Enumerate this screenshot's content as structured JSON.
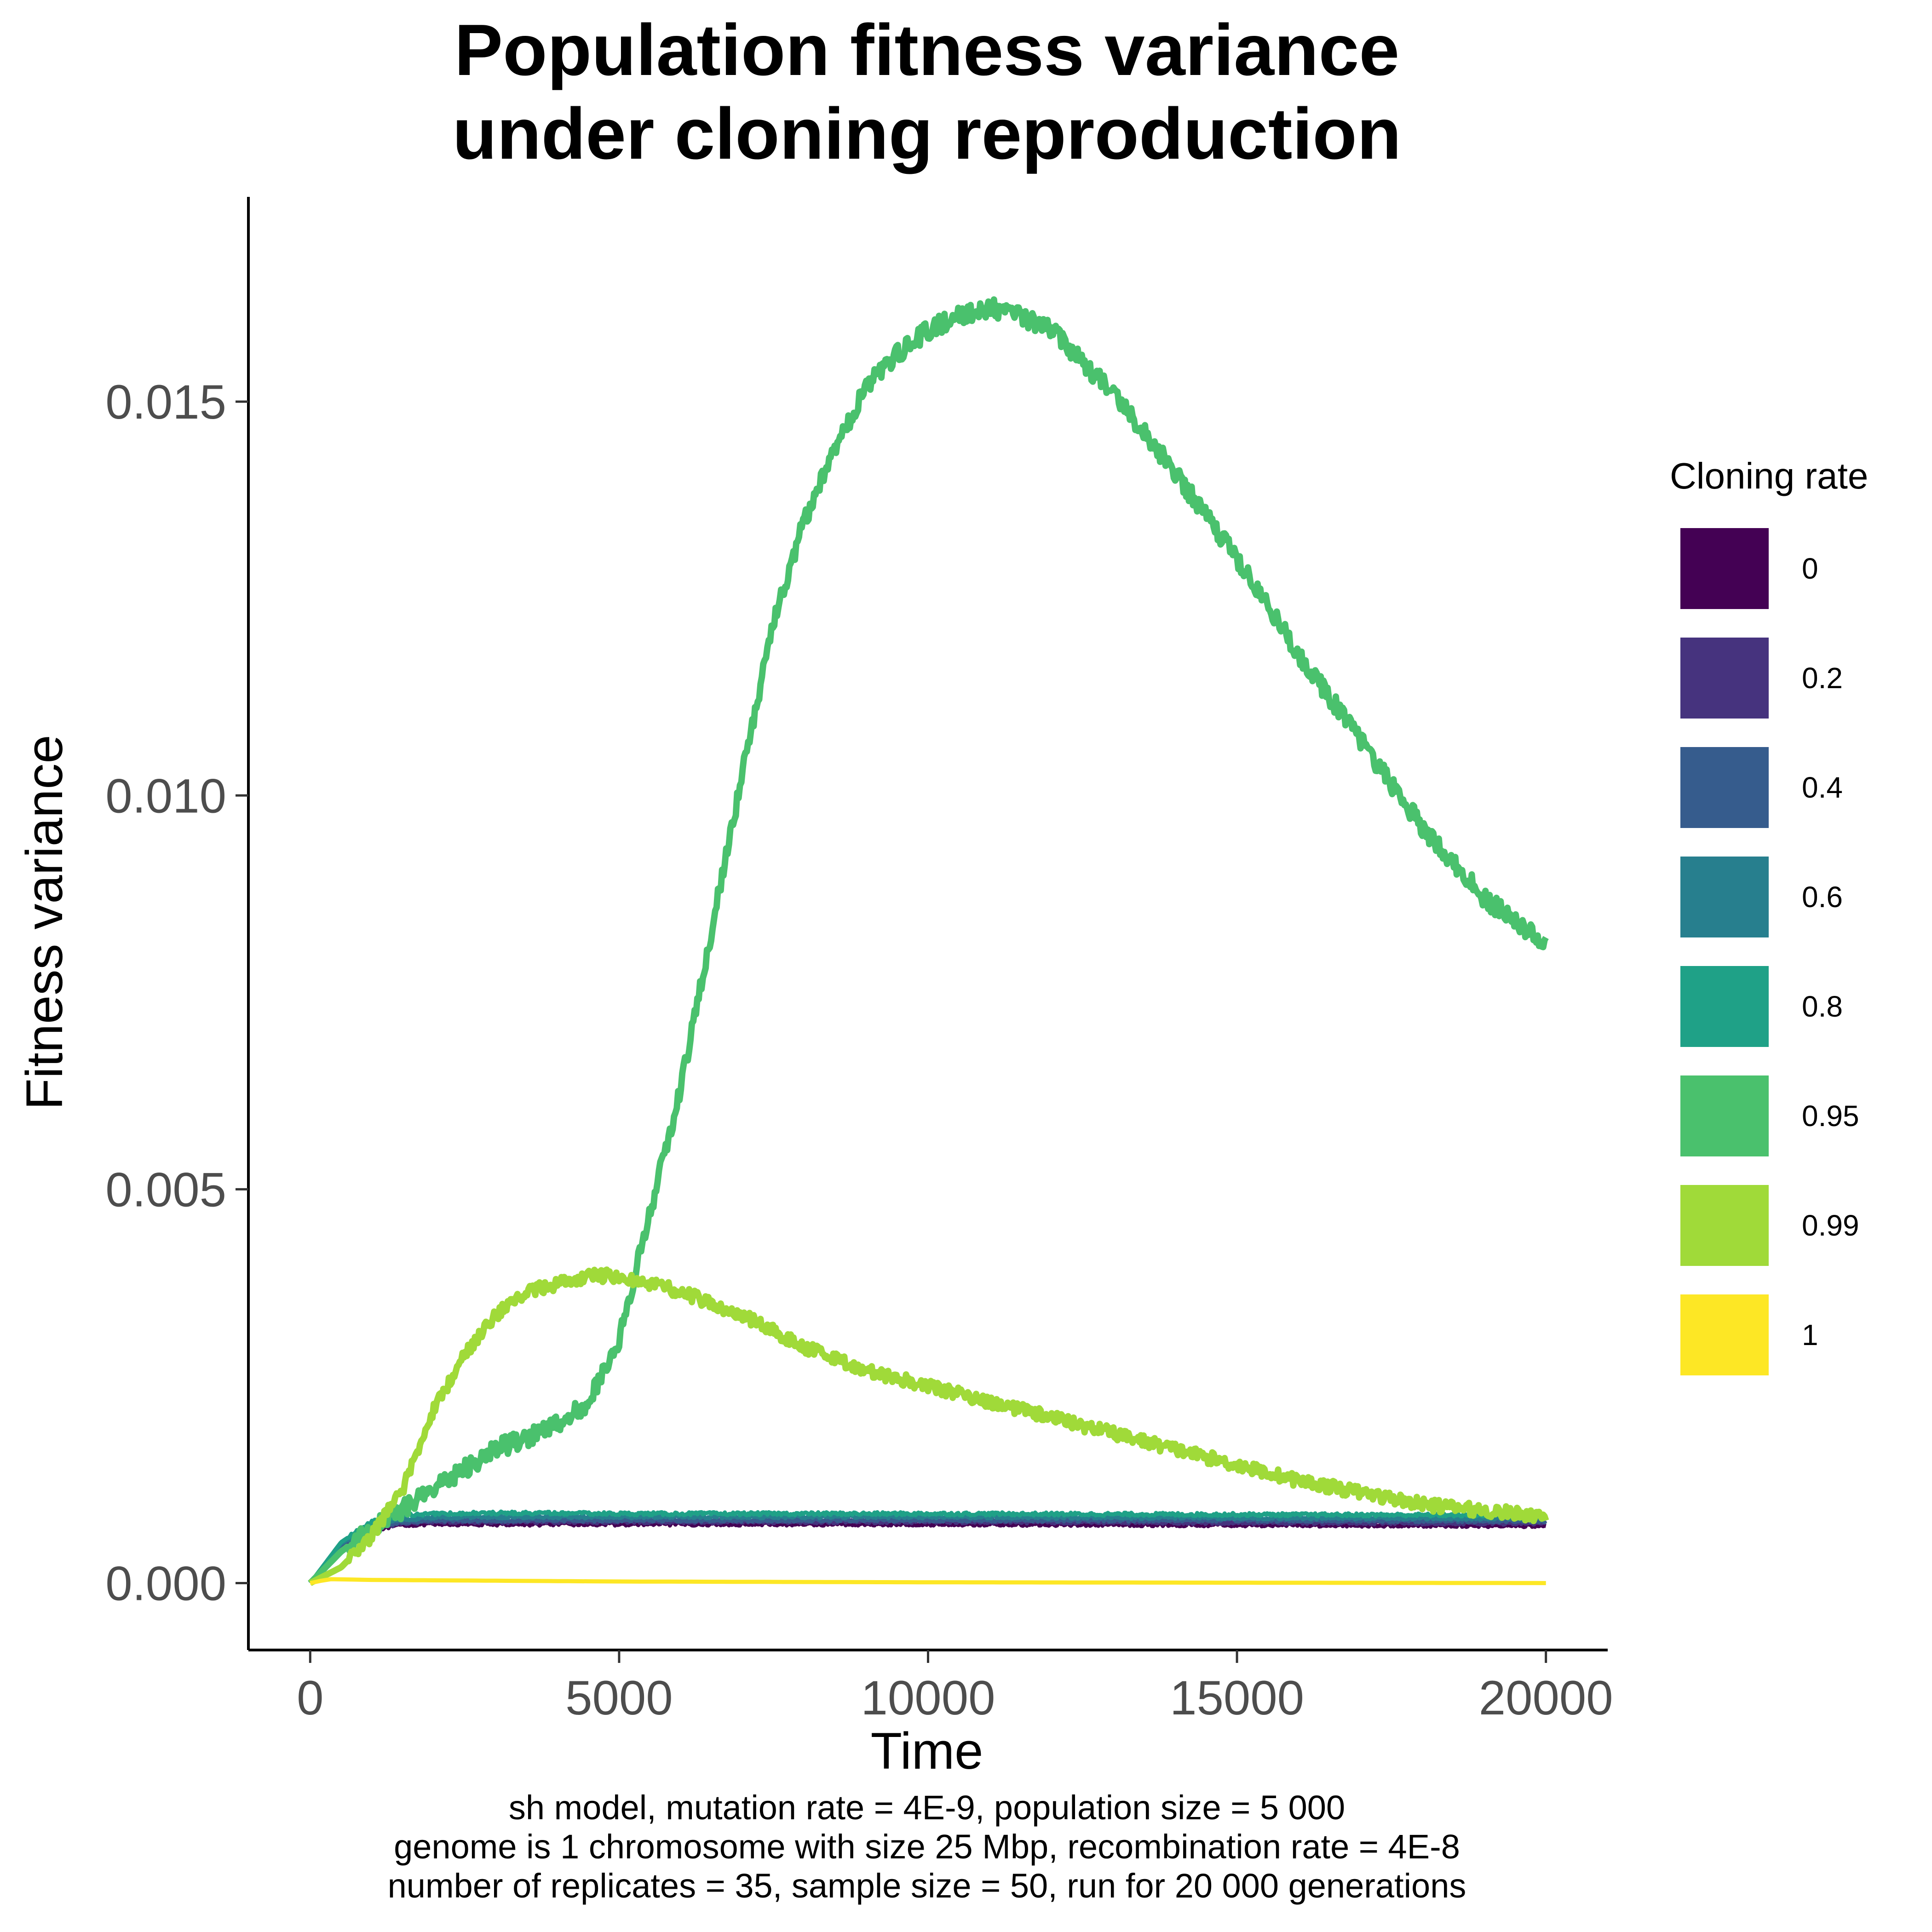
{
  "chart_data": {
    "type": "line",
    "title": [
      "Population fitness variance",
      "under cloning reproduction"
    ],
    "xlabel": "Time",
    "ylabel": "Fitness variance",
    "xlim": [
      -1000,
      21000
    ],
    "ylim": [
      -0.00085,
      0.0176
    ],
    "x_ticks": [
      0,
      5000,
      10000,
      15000,
      20000
    ],
    "x_tick_labels": [
      "0",
      "5000",
      "10000",
      "15000",
      "20000"
    ],
    "y_ticks": [
      0,
      0.005,
      0.01,
      0.015
    ],
    "y_tick_labels": [
      "0.000",
      "0.005",
      "0.010",
      "0.015"
    ],
    "grid": false,
    "legend": {
      "title": "Cloning rate",
      "position": "right"
    },
    "caption": [
      "sh model, mutation rate = 4E-9, population size = 5 000",
      "genome is 1 chromosome with size 25 Mbp, recombination rate = 4E-8",
      "number of replicates = 35, sample size = 50, run for 20 000 generations"
    ],
    "series": [
      {
        "name": "0",
        "color": "#440154",
        "noise": 2e-05,
        "x": [
          0,
          500,
          1000,
          1500,
          2000,
          3000,
          5000,
          10000,
          15000,
          20000
        ],
        "y": [
          0,
          0.00045,
          0.00068,
          0.00074,
          0.00075,
          0.00075,
          0.00075,
          0.00075,
          0.00074,
          0.00073
        ]
      },
      {
        "name": "0.2",
        "color": "#46337e",
        "noise": 2e-05,
        "x": [
          0,
          500,
          1000,
          1500,
          2000,
          3000,
          5000,
          10000,
          15000,
          20000
        ],
        "y": [
          0,
          0.00047,
          0.0007,
          0.00076,
          0.00078,
          0.00078,
          0.00078,
          0.00078,
          0.00077,
          0.00076
        ]
      },
      {
        "name": "0.4",
        "color": "#365c8d",
        "noise": 2e-05,
        "x": [
          0,
          500,
          1000,
          1500,
          2000,
          3000,
          5000,
          10000,
          15000,
          20000
        ],
        "y": [
          0,
          0.00049,
          0.00072,
          0.00078,
          0.0008,
          0.0008,
          0.0008,
          0.0008,
          0.0008,
          0.00079
        ]
      },
      {
        "name": "0.6",
        "color": "#277f8e",
        "noise": 2e-05,
        "x": [
          0,
          500,
          1000,
          1500,
          2000,
          3000,
          5000,
          10000,
          15000,
          20000
        ],
        "y": [
          0,
          0.0005,
          0.00074,
          0.00081,
          0.00083,
          0.00084,
          0.00084,
          0.00084,
          0.00083,
          0.00082
        ]
      },
      {
        "name": "0.8",
        "color": "#1fa187",
        "noise": 2e-05,
        "x": [
          0,
          500,
          1000,
          1500,
          2000,
          3000,
          5000,
          10000,
          15000,
          20000
        ],
        "y": [
          0,
          0.00052,
          0.00078,
          0.00086,
          0.00088,
          0.00089,
          0.00088,
          0.00088,
          0.00087,
          0.00086
        ]
      },
      {
        "name": "0.95",
        "color": "#4ac16d",
        "noise": 0.00012,
        "x": [
          0,
          500,
          1000,
          2000,
          3000,
          4000,
          4500,
          5000,
          5500,
          6000,
          6500,
          7000,
          7500,
          8000,
          8500,
          9000,
          9500,
          10000,
          10500,
          11000,
          11500,
          12000,
          13000,
          14000,
          15000,
          16000,
          17000,
          18000,
          19000,
          20000
        ],
        "y": [
          0,
          0.0004,
          0.0007,
          0.0012,
          0.0017,
          0.002,
          0.0023,
          0.0031,
          0.0047,
          0.0063,
          0.0083,
          0.0103,
          0.0122,
          0.0135,
          0.0144,
          0.0152,
          0.0156,
          0.0159,
          0.0161,
          0.0162,
          0.0161,
          0.0159,
          0.0151,
          0.0141,
          0.013,
          0.0118,
          0.0107,
          0.0096,
          0.0087,
          0.0081
        ]
      },
      {
        "name": "0.99",
        "color": "#a0da39",
        "noise": 8e-05,
        "x": [
          0,
          500,
          1000,
          1500,
          2000,
          2500,
          3000,
          3500,
          4000,
          4500,
          5000,
          5500,
          6000,
          7000,
          8000,
          9000,
          10000,
          11000,
          12000,
          13000,
          14000,
          15000,
          16000,
          17000,
          18000,
          19000,
          20000
        ],
        "y": [
          0,
          0.0002,
          0.0006,
          0.0012,
          0.0022,
          0.0029,
          0.0034,
          0.0037,
          0.0038,
          0.0039,
          0.0039,
          0.0038,
          0.0037,
          0.0034,
          0.003,
          0.0027,
          0.0025,
          0.0023,
          0.0021,
          0.0019,
          0.0017,
          0.0015,
          0.0013,
          0.00115,
          0.001,
          0.00092,
          0.00085
        ]
      },
      {
        "name": "1",
        "color": "#fde725",
        "noise": 0,
        "x": [
          0,
          300,
          1000,
          5000,
          10000,
          15000,
          20000
        ],
        "y": [
          0,
          5e-05,
          4e-05,
          2e-05,
          1e-05,
          5e-06,
          0.0
        ]
      }
    ]
  }
}
